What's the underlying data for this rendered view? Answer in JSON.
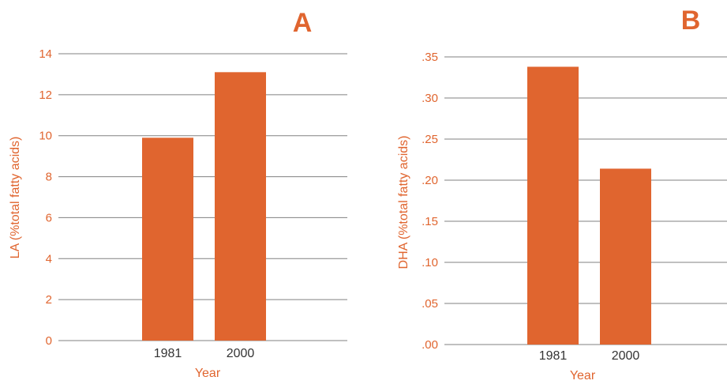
{
  "colors": {
    "accent": "#E0652F",
    "grid": "#808080",
    "background": "#FFFFFF"
  },
  "chart_data": [
    {
      "type": "bar",
      "panel_label": "A",
      "categories": [
        "1981",
        "2000"
      ],
      "values": [
        9.9,
        13.1
      ],
      "title": "",
      "xlabel": "Year",
      "ylabel": "LA (%total fatty acids)",
      "ylim": [
        0,
        14
      ],
      "yticks": [
        0,
        2,
        4,
        6,
        8,
        10,
        12,
        14
      ],
      "ytick_labels": [
        "0",
        "2",
        "4",
        "6",
        "8",
        "10",
        "12",
        "14"
      ],
      "grid": true
    },
    {
      "type": "bar",
      "panel_label": "B",
      "categories": [
        "1981",
        "2000"
      ],
      "values": [
        0.338,
        0.214
      ],
      "title": "",
      "xlabel": "Year",
      "ylabel": "DHA (%total fatty acids)",
      "ylim": [
        0,
        0.35
      ],
      "yticks": [
        0,
        0.05,
        0.1,
        0.15,
        0.2,
        0.25,
        0.3,
        0.35
      ],
      "ytick_labels": [
        ".00",
        ".05",
        ".10",
        ".15",
        ".20",
        ".25",
        ".30",
        ".35"
      ],
      "grid": true
    }
  ]
}
